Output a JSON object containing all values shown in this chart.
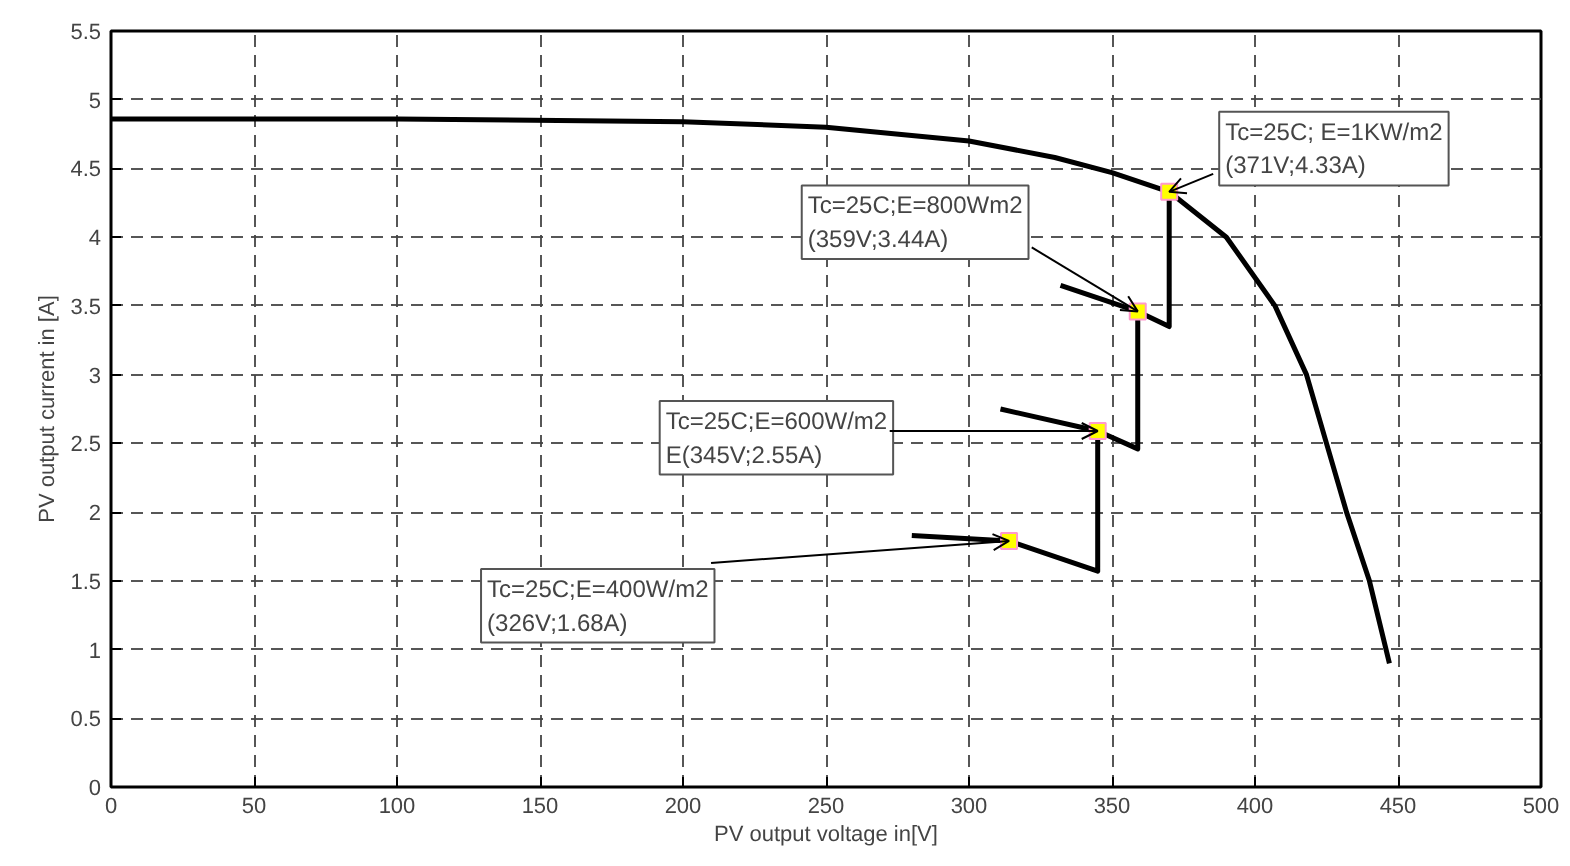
{
  "chart_data": {
    "type": "line",
    "xlabel": "PV output voltage in[V]",
    "ylabel": "PV output current in [A]",
    "xlim": [
      0,
      500
    ],
    "ylim": [
      0,
      5.5
    ],
    "xticks": [
      0,
      50,
      100,
      150,
      200,
      250,
      300,
      350,
      400,
      450,
      500
    ],
    "yticks": [
      0,
      0.5,
      1,
      1.5,
      2,
      2.5,
      3,
      3.5,
      4,
      4.5,
      5,
      5.5
    ],
    "grid": true,
    "series": [
      {
        "color": "#000000",
        "x": [
          0,
          100,
          200,
          250,
          300,
          330,
          350,
          370,
          390,
          407,
          418,
          425,
          432,
          440,
          447
        ],
        "values": [
          4.86,
          4.86,
          4.84,
          4.8,
          4.7,
          4.58,
          4.47,
          4.33,
          4.0,
          3.5,
          3.0,
          2.5,
          2.0,
          1.5,
          0.9
        ]
      },
      {
        "color": "#000000",
        "x": [
          280,
          314,
          345,
          345
        ],
        "values": [
          1.83,
          1.79,
          1.57,
          2.59
        ]
      },
      {
        "color": "#000000",
        "x": [
          311,
          345,
          359,
          359
        ],
        "values": [
          2.75,
          2.59,
          2.46,
          3.46
        ]
      },
      {
        "color": "#000000",
        "x": [
          332,
          359,
          370,
          370
        ],
        "values": [
          3.65,
          3.46,
          3.35,
          4.33
        ]
      },
      {
        "type": "scatter",
        "marker": "square",
        "color": "#ffff00",
        "x": [
          314,
          345,
          359,
          370
        ],
        "values": [
          1.79,
          2.59,
          3.46,
          4.33
        ]
      }
    ],
    "annotations": [
      {
        "text": "Tc=25C;E=400W/m2\n(326V;1.68A)",
        "x": 314,
        "y": 1.79
      },
      {
        "text": "Tc=25C;E=600W/m2\nE(345V;2.55A)",
        "x": 345,
        "y": 2.59
      },
      {
        "text": "Tc=25C;E=800Wm2\n(359V;3.44A)",
        "x": 359,
        "y": 3.46
      },
      {
        "text": "Tc=25C; E=1KW/m2\n(371V;4.33A)",
        "x": 370,
        "y": 4.33
      }
    ]
  }
}
